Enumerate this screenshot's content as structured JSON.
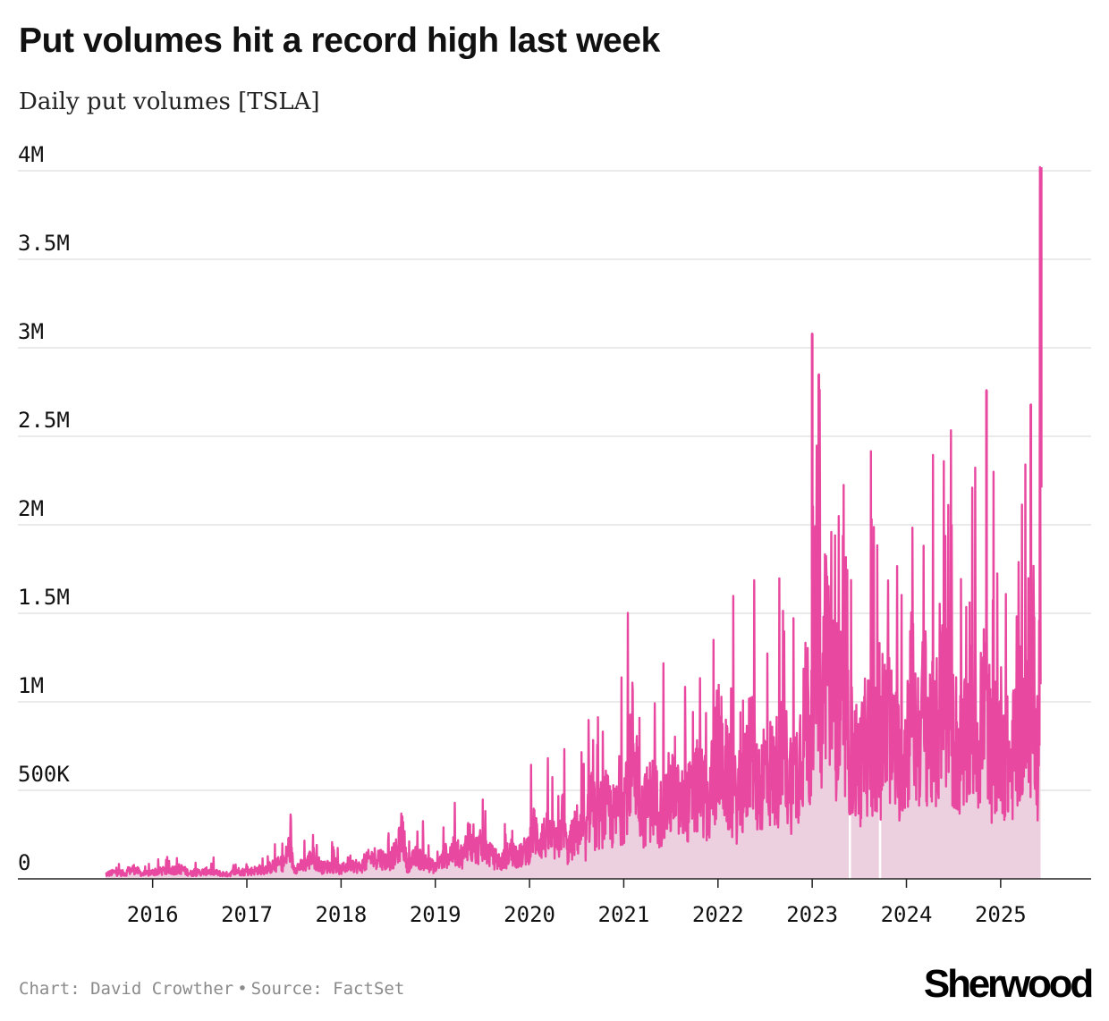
{
  "chart_data": {
    "type": "area",
    "title": "Put volumes hit a record high last week",
    "subtitle": "Daily put volumes [TSLA]",
    "xlabel": "",
    "ylabel": "",
    "ylim": [
      0,
      4000000
    ],
    "y_ticks": [
      0,
      500000,
      1000000,
      1500000,
      2000000,
      2500000,
      3000000,
      3500000,
      4000000
    ],
    "y_tick_labels": [
      "0",
      "500K",
      "1M",
      "1.5M",
      "2M",
      "2.5M",
      "3M",
      "3.5M",
      "4M"
    ],
    "x_ticks": [
      2016,
      2017,
      2018,
      2019,
      2020,
      2021,
      2022,
      2023,
      2024,
      2025
    ],
    "x_tick_labels": [
      "2016",
      "2017",
      "2018",
      "2019",
      "2020",
      "2021",
      "2022",
      "2023",
      "2024",
      "2025"
    ],
    "xlim": [
      2014.57,
      2025.96
    ],
    "grid": true,
    "series": [
      {
        "name": "Daily put volumes [TSLA]",
        "color": "#e8489f",
        "fill_color": "#edd0df",
        "x": [
          2015.5,
          2015.6,
          2015.7,
          2015.8,
          2015.9,
          2016.0,
          2016.1,
          2016.2,
          2016.3,
          2016.4,
          2016.5,
          2016.6,
          2016.7,
          2016.8,
          2016.9,
          2017.0,
          2017.1,
          2017.2,
          2017.3,
          2017.4,
          2017.45,
          2017.5,
          2017.6,
          2017.7,
          2017.8,
          2017.9,
          2018.0,
          2018.1,
          2018.2,
          2018.3,
          2018.4,
          2018.5,
          2018.6,
          2018.65,
          2018.7,
          2018.8,
          2018.9,
          2019.0,
          2019.1,
          2019.2,
          2019.3,
          2019.35,
          2019.4,
          2019.5,
          2019.6,
          2019.7,
          2019.8,
          2019.9,
          2020.0,
          2020.05,
          2020.1,
          2020.2,
          2020.3,
          2020.35,
          2020.4,
          2020.5,
          2020.6,
          2020.65,
          2020.7,
          2020.8,
          2020.9,
          2021.0,
          2021.1,
          2021.2,
          2021.3,
          2021.4,
          2021.5,
          2021.6,
          2021.7,
          2021.8,
          2021.85,
          2021.9,
          2022.0,
          2022.1,
          2022.2,
          2022.3,
          2022.35,
          2022.4,
          2022.5,
          2022.6,
          2022.7,
          2022.8,
          2022.9,
          2022.95,
          2023.0,
          2023.05,
          2023.1,
          2023.15,
          2023.2,
          2023.3,
          2023.4,
          2023.5,
          2023.6,
          2023.7,
          2023.8,
          2023.9,
          2024.0,
          2024.05,
          2024.1,
          2024.2,
          2024.3,
          2024.4,
          2024.5,
          2024.6,
          2024.7,
          2024.8,
          2024.83,
          2024.9,
          2025.0,
          2025.1,
          2025.15,
          2025.2,
          2025.3,
          2025.35,
          2025.4,
          2025.42
        ],
        "values": [
          40000,
          60000,
          50000,
          90000,
          40000,
          60000,
          70000,
          80000,
          90000,
          50000,
          60000,
          70000,
          50000,
          40000,
          70000,
          60000,
          80000,
          90000,
          120000,
          150000,
          300000,
          100000,
          120000,
          200000,
          100000,
          120000,
          80000,
          150000,
          100000,
          180000,
          200000,
          150000,
          250000,
          450000,
          120000,
          200000,
          150000,
          100000,
          200000,
          250000,
          200000,
          400000,
          250000,
          300000,
          200000,
          150000,
          250000,
          200000,
          300000,
          450000,
          350000,
          400000,
          300000,
          550000,
          250000,
          450000,
          350000,
          800000,
          500000,
          650000,
          550000,
          700000,
          1250000,
          600000,
          750000,
          600000,
          800000,
          650000,
          700000,
          850000,
          750000,
          650000,
          1200000,
          900000,
          700000,
          900000,
          1350000,
          800000,
          1000000,
          950000,
          1100000,
          850000,
          1300000,
          1500000,
          1100000,
          2650000,
          1200000,
          2500000,
          1600000,
          1500000,
          1200000,
          1000000,
          1300000,
          1100000,
          1400000,
          1100000,
          1200000,
          1700000,
          1300000,
          1500000,
          1200000,
          1700000,
          1300000,
          1100000,
          1500000,
          1200000,
          1800000,
          1100000,
          1300000,
          1000000,
          1200000,
          1500000,
          1300000,
          2000000,
          1000000,
          3500000
        ]
      }
    ],
    "peaks": [
      {
        "x": 2023.0,
        "value": 3080000
      },
      {
        "x": 2023.07,
        "value": 2850000
      },
      {
        "x": 2024.85,
        "value": 2760000
      },
      {
        "x": 2025.32,
        "value": 2680000
      },
      {
        "x": 2025.43,
        "value": 4020000
      }
    ],
    "gaps": [
      {
        "x": 2023.4,
        "value": 0
      },
      {
        "x": 2023.72,
        "value": 0
      }
    ]
  },
  "footer": {
    "credit": "Chart: David Crowther",
    "separator": "•",
    "source": "Source: FactSet"
  },
  "brand": {
    "logo_text": "Sherwood"
  },
  "colors": {
    "line": "#e8489f",
    "fill": "#edd0df",
    "grid": "#e3e3e3",
    "axis": "#222222",
    "text": "#111111",
    "footer": "#8a8a8a"
  }
}
